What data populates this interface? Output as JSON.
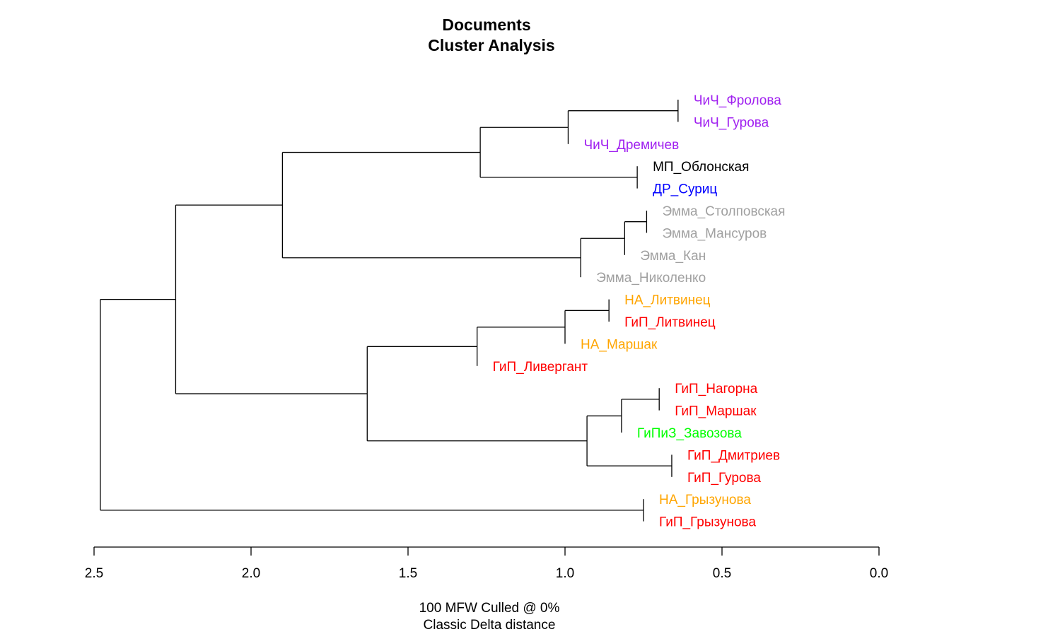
{
  "chart_data": {
    "type": "dendrogram",
    "title": [
      "Documents",
      "Cluster Analysis"
    ],
    "xlabel": [
      "100 MFW  Culled @ 0%",
      "Classic Delta distance"
    ],
    "xlim": [
      2.5,
      0.0
    ],
    "ticks": [
      2.5,
      2.0,
      1.5,
      1.0,
      0.5,
      0.0
    ],
    "tick_labels": [
      "2.5",
      "2.0",
      "1.5",
      "1.0",
      "0.5",
      "0.0"
    ],
    "leaves": [
      {
        "label": "ЧиЧ_Фролова",
        "color": "#a020f0",
        "height": 0.64
      },
      {
        "label": "ЧиЧ_Гурова",
        "color": "#a020f0",
        "height": 0.64
      },
      {
        "label": "ЧиЧ_Дремичев",
        "color": "#a020f0",
        "height": 0.99
      },
      {
        "label": "МП_Облонская",
        "color": "#000000",
        "height": 0.77
      },
      {
        "label": "ДР_Суриц",
        "color": "#0000ff",
        "height": 0.77
      },
      {
        "label": "Эмма_Столповская",
        "color": "#a0a0a0",
        "height": 0.74
      },
      {
        "label": "Эмма_Мансуров",
        "color": "#a0a0a0",
        "height": 0.74
      },
      {
        "label": "Эмма_Кан",
        "color": "#a0a0a0",
        "height": 0.81
      },
      {
        "label": "Эмма_Николенко",
        "color": "#a0a0a0",
        "height": 0.95
      },
      {
        "label": "НА_Литвинец",
        "color": "#ffa500",
        "height": 0.86
      },
      {
        "label": "ГиП_Литвинец",
        "color": "#ff0000",
        "height": 0.86
      },
      {
        "label": "НА_Маршак",
        "color": "#ffa500",
        "height": 1.0
      },
      {
        "label": "ГиП_Ливергант",
        "color": "#ff0000",
        "height": 1.28
      },
      {
        "label": "ГиП_Нагорна",
        "color": "#ff0000",
        "height": 0.7
      },
      {
        "label": "ГиП_Маршак",
        "color": "#ff0000",
        "height": 0.7
      },
      {
        "label": "ГиПиЗ_Завозова",
        "color": "#00ff00",
        "height": 0.82
      },
      {
        "label": "ГиП_Дмитриев",
        "color": "#ff0000",
        "height": 0.66
      },
      {
        "label": "ГиП_Гурова",
        "color": "#ff0000",
        "height": 0.66
      },
      {
        "label": "НА_Грызунова",
        "color": "#ffa500",
        "height": 0.75
      },
      {
        "label": "ГиП_Грызунова",
        "color": "#ff0000",
        "height": 0.75
      }
    ],
    "merges": [
      {
        "a": "L0",
        "b": "L1",
        "height": 0.64
      },
      {
        "a": "N0",
        "b": "L2",
        "height": 0.99
      },
      {
        "a": "L3",
        "b": "L4",
        "height": 0.77
      },
      {
        "a": "N1",
        "b": "N2",
        "height": 1.27
      },
      {
        "a": "L5",
        "b": "L6",
        "height": 0.74
      },
      {
        "a": "N4",
        "b": "L7",
        "height": 0.81
      },
      {
        "a": "N5",
        "b": "L8",
        "height": 0.95
      },
      {
        "a": "N3",
        "b": "N6",
        "height": 1.9
      },
      {
        "a": "L9",
        "b": "L10",
        "height": 0.86
      },
      {
        "a": "N8",
        "b": "L11",
        "height": 1.0
      },
      {
        "a": "N9",
        "b": "L12",
        "height": 1.28
      },
      {
        "a": "L13",
        "b": "L14",
        "height": 0.7
      },
      {
        "a": "N11",
        "b": "L15",
        "height": 0.82
      },
      {
        "a": "L16",
        "b": "L17",
        "height": 0.66
      },
      {
        "a": "N12",
        "b": "N13",
        "height": 0.93
      },
      {
        "a": "N10",
        "b": "N14",
        "height": 1.63
      },
      {
        "a": "N7",
        "b": "N15",
        "height": 2.24
      },
      {
        "a": "L18",
        "b": "L19",
        "height": 0.75
      },
      {
        "a": "N16",
        "b": "N17",
        "height": 2.48
      }
    ]
  }
}
